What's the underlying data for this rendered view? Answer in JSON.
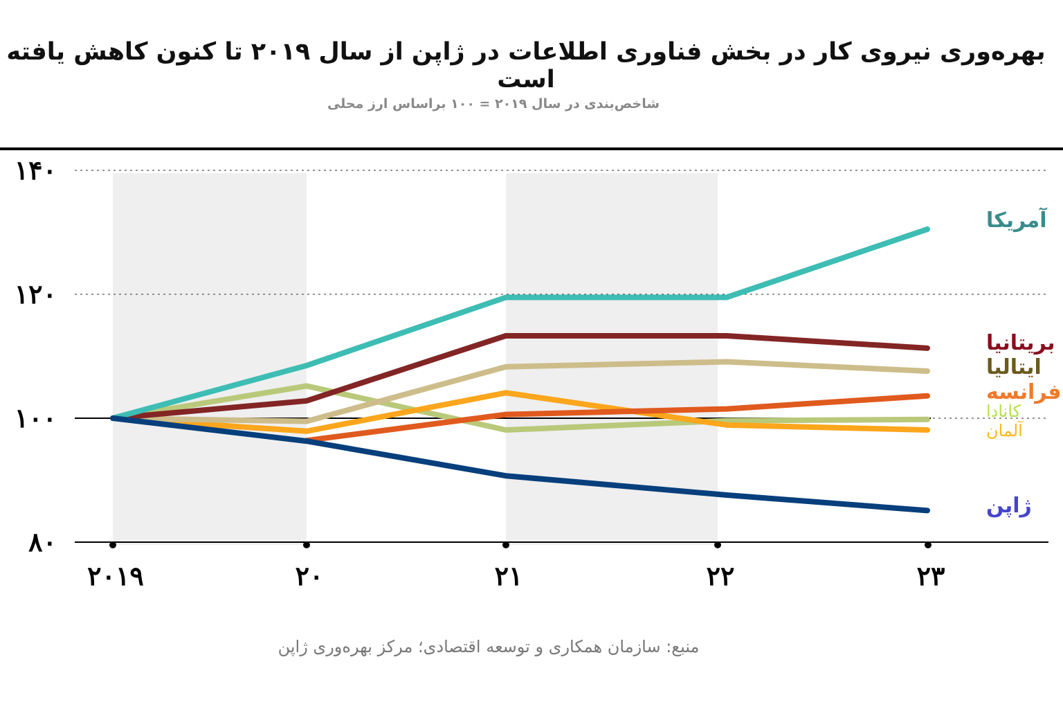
{
  "title": "بهره‌وری نیروی کار در بخش فناوری اطلاعات در ژاپن از سال ۲۰۱۹ تا کنون کاهش یافته است",
  "subtitle": "شاخص‌بندی در سال ۲۰۱۹ = ۱۰۰ براساس ارز محلی",
  "source": "منبع: سازمان همکاری و توسعه اقتصادی؛ مرکز بهره‌وری ژاپن",
  "chart_data": {
    "type": "line",
    "title": "بهره‌وری نیروی کار در بخش فناوری اطلاعات در ژاپن از سال ۲۰۱۹ تا کنون کاهش یافته است",
    "x": [
      2019,
      2020,
      2021,
      2022,
      2023
    ],
    "x_tick_labels": [
      "۲۰۱۹",
      "۲۰",
      "۲۱",
      "۲۲",
      "۲۳"
    ],
    "y_tick_values": [
      80,
      100,
      120,
      140
    ],
    "y_tick_labels": [
      "۸۰",
      "۱۰۰",
      "۱۲۰",
      "۱۴۰"
    ],
    "ylim": [
      80,
      140
    ],
    "grid": "dotted horizontal",
    "legend": "direct labels at right",
    "series": [
      {
        "name": "آمریکا",
        "color": "#3dbdb3",
        "label_color": "#3a8c8c",
        "values": [
          100,
          108.5,
          119.5,
          119.5,
          130.5
        ]
      },
      {
        "name": "بریتانیا",
        "color": "#832525",
        "label_color": "#8a0e1e",
        "values": [
          100,
          102.8,
          113.3,
          113.3,
          111.3
        ]
      },
      {
        "name": "ایتالیا",
        "color": "#cdbd8a",
        "label_color": "#6b5a1e",
        "values": [
          100,
          99.5,
          108.3,
          109.1,
          107.6
        ]
      },
      {
        "name": "فرانسه",
        "color": "#e05a1e",
        "label_color": "#f07a2a",
        "values": [
          null,
          96.4,
          100.6,
          101.5,
          103.6
        ]
      },
      {
        "name": "کانادا",
        "color": "#b9c97a",
        "label_color": "#b5e04a",
        "values": [
          100,
          105.2,
          98.1,
          99.6,
          99.8
        ]
      },
      {
        "name": "آلمان",
        "color": "#fba61c",
        "label_color": "#fbb81c",
        "values": [
          100,
          97.9,
          104.1,
          98.9,
          98.1
        ]
      },
      {
        "name": "ژاپن",
        "color": "#063f7c",
        "label_color": "#4444cc",
        "values": [
          100,
          96.3,
          90.7,
          87.6,
          85.1
        ]
      }
    ]
  }
}
